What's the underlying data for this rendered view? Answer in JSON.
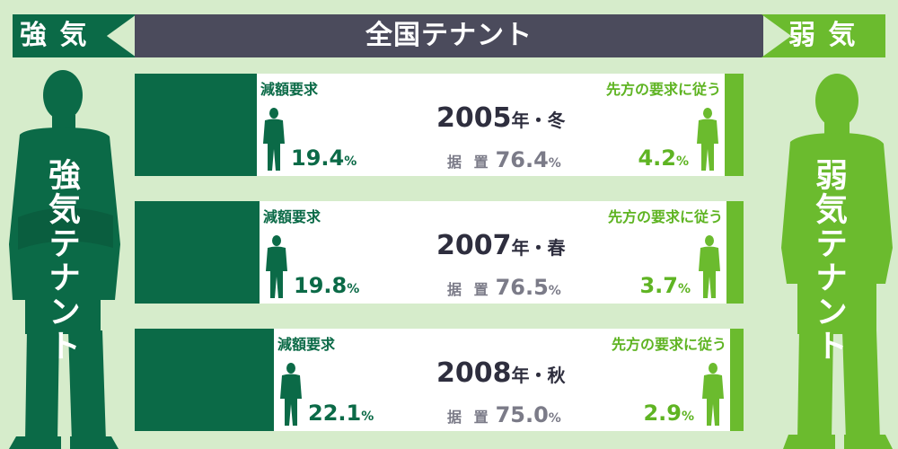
{
  "header": {
    "left": "強 気",
    "center": "全国テナント",
    "right": "弱 気"
  },
  "side": {
    "left_label": "強気テナント",
    "right_label": "弱気テナント"
  },
  "rows": [
    {
      "period_year": "2005",
      "period_suffix": "年・冬",
      "strong_label": "減額要求",
      "weak_label": "先方の要求に従う",
      "mid_label": "据 置",
      "strong_num": "19.4",
      "mid_num": "76.4",
      "weak_num": "4.2",
      "pct": "%"
    },
    {
      "period_year": "2007",
      "period_suffix": "年・春",
      "strong_label": "減額要求",
      "weak_label": "先方の要求に従う",
      "mid_label": "据 置",
      "strong_num": "19.8",
      "mid_num": "76.5",
      "weak_num": "3.7",
      "pct": "%"
    },
    {
      "period_year": "2008",
      "period_suffix": "年・秋",
      "strong_label": "減額要求",
      "weak_label": "先方の要求に従う",
      "mid_label": "据 置",
      "strong_num": "22.1",
      "mid_num": "75.0",
      "weak_num": "2.9",
      "pct": "%"
    }
  ],
  "colors": {
    "strong": "#0b6a47",
    "weak": "#6bbb2e",
    "header_center": "#4b4b5c",
    "background": "#d6eccb"
  },
  "chart_data": {
    "type": "bar",
    "orientation": "horizontal-stacked",
    "categories": [
      "2005年・冬",
      "2007年・春",
      "2008年・秋"
    ],
    "series": [
      {
        "name": "減額要求",
        "values": [
          19.4,
          19.8,
          22.1
        ]
      },
      {
        "name": "据 置",
        "values": [
          76.4,
          76.5,
          75.0
        ]
      },
      {
        "name": "先方の要求に従う",
        "values": [
          4.2,
          3.7,
          2.9
        ]
      }
    ],
    "unit": "%"
  }
}
